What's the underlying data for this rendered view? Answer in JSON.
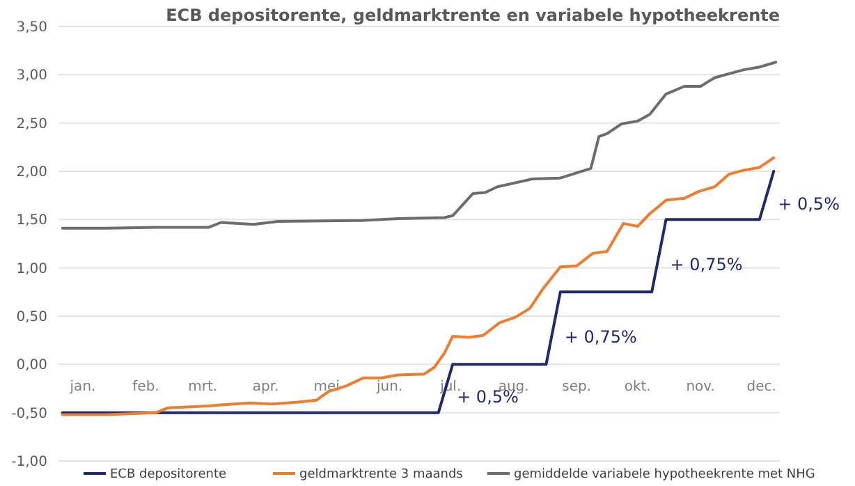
{
  "chart_data": {
    "type": "line",
    "title": "ECB depositorente, geldmarktrente en variabele hypotheekrente",
    "xlim": [
      "--01-03",
      "--12-24"
    ],
    "xticks": [
      {
        "value": "--01-15",
        "label": "jan."
      },
      {
        "value": "--02-15",
        "label": "feb."
      },
      {
        "value": "--03-15",
        "label": "mrt."
      },
      {
        "value": "--04-15",
        "label": "apr."
      },
      {
        "value": "--05-15",
        "label": "mei"
      },
      {
        "value": "--06-15",
        "label": "jun."
      },
      {
        "value": "--07-15",
        "label": "jul."
      },
      {
        "value": "--08-15",
        "label": "aug."
      },
      {
        "value": "--09-15",
        "label": "sep."
      },
      {
        "value": "--10-15",
        "label": "okt."
      },
      {
        "value": "--11-15",
        "label": "nov."
      },
      {
        "value": "--12-15",
        "label": "dec."
      }
    ],
    "ylim": [
      -1,
      3.5
    ],
    "yticks": [
      {
        "value": -1,
        "label": "-1,00"
      },
      {
        "value": -0.5,
        "label": "-0,50"
      },
      {
        "value": 0,
        "label": "0,00"
      },
      {
        "value": 0.5,
        "label": "0,50"
      },
      {
        "value": 1,
        "label": "1,00"
      },
      {
        "value": 1.5,
        "label": "1,50"
      },
      {
        "value": 2,
        "label": "2,00"
      },
      {
        "value": 2.5,
        "label": "2,50"
      },
      {
        "value": 3,
        "label": "3,00"
      },
      {
        "value": 3.5,
        "label": "3,50"
      }
    ],
    "grid": "y",
    "legend": "bottom",
    "marker": "none",
    "line_style": "solid",
    "series": [
      {
        "name": "ECB depositorente",
        "color": "#1f2a6b",
        "x": [
          "--01-05",
          "--07-09",
          "--07-16",
          "--08-31",
          "--09-07",
          "--10-22",
          "--10-29",
          "--12-14",
          "--12-21"
        ],
        "values": [
          -0.5,
          -0.5,
          0,
          0,
          0.75,
          0.75,
          1.5,
          1.5,
          2.0
        ]
      },
      {
        "name": "geldmarktrente 3 maands",
        "color": "#ed7d31",
        "x": [
          "--01-05",
          "--01-27",
          "--02-20",
          "--02-26",
          "--03-18",
          "--03-24",
          "--04-07",
          "--04-18",
          "--05-01",
          "--05-10",
          "--05-16",
          "--05-25",
          "--06-02",
          "--06-11",
          "--06-19",
          "--07-02",
          "--07-07",
          "--07-12",
          "--07-16",
          "--07-24",
          "--07-31",
          "--08-08",
          "--08-16",
          "--08-23",
          "--08-29",
          "--09-07",
          "--09-15",
          "--09-23",
          "--09-30",
          "--10-08",
          "--10-15",
          "--10-21",
          "--10-29",
          "--11-07",
          "--11-14",
          "--11-22",
          "--11-29",
          "--12-06",
          "--12-14",
          "--12-21"
        ],
        "values": [
          -0.52,
          -0.52,
          -0.5,
          -0.45,
          -0.43,
          -0.42,
          -0.4,
          -0.41,
          -0.39,
          -0.37,
          -0.28,
          -0.22,
          -0.14,
          -0.14,
          -0.11,
          -0.1,
          -0.03,
          0.12,
          0.29,
          0.28,
          0.3,
          0.43,
          0.49,
          0.58,
          0.77,
          1.01,
          1.02,
          1.15,
          1.17,
          1.46,
          1.43,
          1.56,
          1.7,
          1.72,
          1.79,
          1.84,
          1.97,
          2.01,
          2.04,
          2.14
        ]
      },
      {
        "name": "gemiddelde variabele hypotheekrente met NHG",
        "color": "#6d6d6d",
        "x": [
          "--01-05",
          "--01-27",
          "--02-20",
          "--03-18",
          "--03-24",
          "--04-09",
          "--04-21",
          "--06-01",
          "--06-19",
          "--07-12",
          "--07-16",
          "--07-26",
          "--08-01",
          "--08-07",
          "--08-24",
          "--09-07",
          "--09-22",
          "--09-26",
          "--09-30",
          "--10-07",
          "--10-15",
          "--10-21",
          "--10-29",
          "--11-07",
          "--11-15",
          "--11-22",
          "--12-06",
          "--12-14",
          "--12-22"
        ],
        "values": [
          1.41,
          1.41,
          1.42,
          1.42,
          1.47,
          1.45,
          1.48,
          1.49,
          1.51,
          1.52,
          1.54,
          1.77,
          1.78,
          1.84,
          1.92,
          1.93,
          2.03,
          2.36,
          2.39,
          2.49,
          2.52,
          2.59,
          2.8,
          2.88,
          2.88,
          2.97,
          3.05,
          3.08,
          3.13
        ]
      }
    ],
    "annotations": [
      "+ 0,5%",
      "+ 0,75%",
      "+ 0,75%",
      "+ 0,5%"
    ]
  }
}
